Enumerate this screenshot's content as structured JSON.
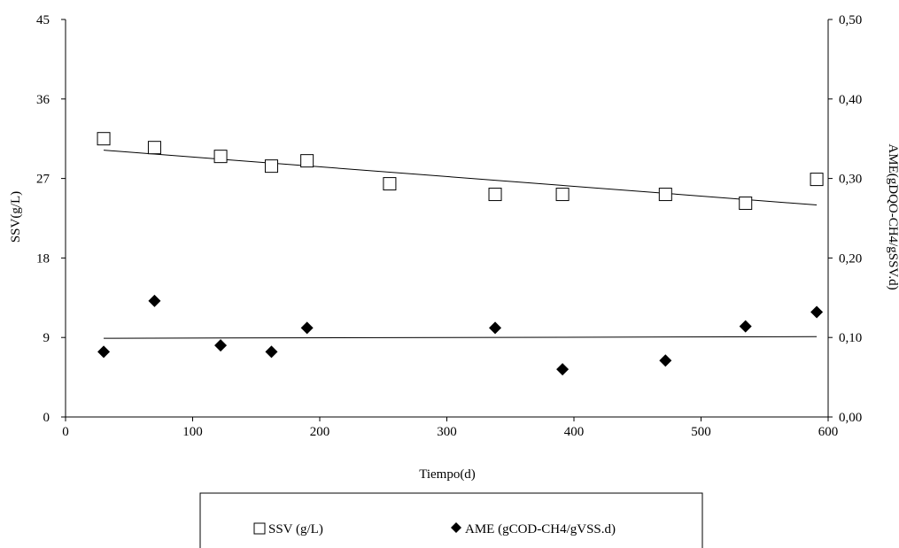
{
  "chart_data": {
    "type": "scatter",
    "title": "",
    "xlabel": "Tiempo(d)",
    "ylabel_left": "SSV(g/L)",
    "ylabel_right": "AME(gDQO-CH4/gSSV.d)",
    "xlim": [
      0,
      600
    ],
    "xticks": [
      0,
      100,
      200,
      300,
      400,
      500,
      600
    ],
    "xtick_labels": [
      "0",
      "100",
      "200",
      "300",
      "400",
      "500",
      "600"
    ],
    "ylim_left": [
      0,
      45
    ],
    "yticks_left": [
      0,
      9,
      18,
      27,
      36,
      45
    ],
    "ytick_labels_left": [
      "0",
      "9",
      "18",
      "27",
      "36",
      "45"
    ],
    "ylim_right": [
      0,
      0.5
    ],
    "yticks_right": [
      0,
      0.1,
      0.2,
      0.3,
      0.4,
      0.5
    ],
    "ytick_labels_right": [
      "0,00",
      "0,10",
      "0,20",
      "0,30",
      "0,40",
      "0,50"
    ],
    "grid": false,
    "legend_position": "bottom",
    "series": [
      {
        "name": "SSV (g/L)",
        "axis": "left",
        "marker": "open-square",
        "x": [
          30,
          70,
          122,
          162,
          190,
          255,
          338,
          391,
          472,
          535,
          591
        ],
        "y": [
          31.5,
          30.5,
          29.5,
          28.4,
          29.0,
          26.4,
          25.2,
          25.2,
          25.2,
          24.2,
          26.9
        ],
        "trendline": {
          "x": [
            30,
            591
          ],
          "y": [
            30.2,
            24.0
          ]
        }
      },
      {
        "name": "AME (gCOD-CH4/gVSS.d)",
        "axis": "right",
        "marker": "filled-diamond",
        "x": [
          30,
          70,
          122,
          162,
          190,
          338,
          391,
          472,
          535,
          591
        ],
        "y": [
          0.082,
          0.146,
          0.09,
          0.082,
          0.112,
          0.112,
          0.06,
          0.071,
          0.114,
          0.132
        ],
        "trendline": {
          "x": [
            30,
            591
          ],
          "y": [
            0.099,
            0.101
          ]
        }
      }
    ],
    "colors": {
      "axis": "#000000",
      "background": "#ffffff",
      "marker": "#000000"
    }
  }
}
